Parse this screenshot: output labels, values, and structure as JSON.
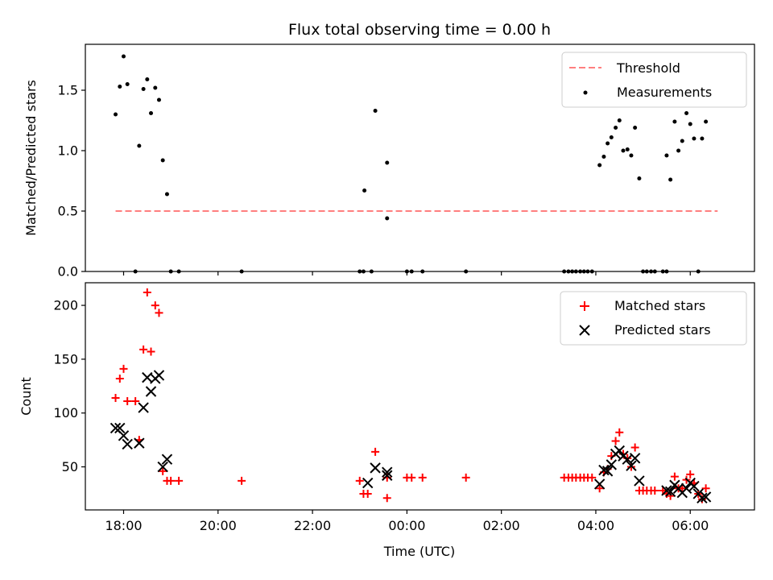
{
  "chart_data": [
    {
      "type": "scatter",
      "title": "Flux total observing time = 0.00 h",
      "xlabel": "",
      "ylabel": "Matched/Predicted stars",
      "ylim": [
        0,
        1.88
      ],
      "xlim": [
        -0.81,
        13.36
      ],
      "x_unit": "hours since 18:00 UTC",
      "yticks": [
        0.0,
        0.5,
        1.0,
        1.5
      ],
      "ytick_labels": [
        "0.0",
        "0.5",
        "1.0",
        "1.5"
      ],
      "xticks": [
        0,
        2,
        4,
        6,
        8,
        10,
        12
      ],
      "grid": false,
      "legend_position": "upper right",
      "threshold": {
        "name": "Threshold",
        "value": 0.5,
        "x_range": [
          -0.17,
          12.58
        ],
        "color": "#ff7f7f",
        "style": "dashed"
      },
      "series": [
        {
          "name": "Measurements",
          "color": "#000000",
          "marker": "dot",
          "points": [
            [
              -0.17,
              1.3
            ],
            [
              -0.08,
              1.53
            ],
            [
              0.0,
              1.78
            ],
            [
              0.08,
              1.55
            ],
            [
              0.25,
              0.0
            ],
            [
              0.33,
              1.04
            ],
            [
              0.42,
              1.51
            ],
            [
              0.5,
              1.59
            ],
            [
              0.58,
              1.31
            ],
            [
              0.67,
              1.52
            ],
            [
              0.75,
              1.42
            ],
            [
              0.83,
              0.92
            ],
            [
              0.92,
              0.64
            ],
            [
              1.0,
              0.0
            ],
            [
              1.17,
              0.0
            ],
            [
              2.5,
              0.0
            ],
            [
              5.0,
              0.0
            ],
            [
              5.08,
              0.0
            ],
            [
              5.1,
              0.67
            ],
            [
              5.25,
              0.0
            ],
            [
              5.33,
              1.33
            ],
            [
              5.58,
              0.44
            ],
            [
              5.58,
              0.9
            ],
            [
              6.0,
              0.0
            ],
            [
              6.1,
              0.0
            ],
            [
              6.33,
              0.0
            ],
            [
              7.25,
              0.0
            ],
            [
              9.33,
              0.0
            ],
            [
              9.42,
              0.0
            ],
            [
              9.5,
              0.0
            ],
            [
              9.58,
              0.0
            ],
            [
              9.67,
              0.0
            ],
            [
              9.75,
              0.0
            ],
            [
              9.83,
              0.0
            ],
            [
              9.92,
              0.0
            ],
            [
              10.08,
              0.88
            ],
            [
              10.17,
              0.95
            ],
            [
              10.25,
              1.06
            ],
            [
              10.33,
              1.11
            ],
            [
              10.42,
              1.19
            ],
            [
              10.5,
              1.25
            ],
            [
              10.58,
              1.0
            ],
            [
              10.67,
              1.01
            ],
            [
              10.75,
              0.96
            ],
            [
              10.83,
              1.19
            ],
            [
              10.92,
              0.77
            ],
            [
              11.0,
              0.0
            ],
            [
              11.08,
              0.0
            ],
            [
              11.17,
              0.0
            ],
            [
              11.25,
              0.0
            ],
            [
              11.42,
              0.0
            ],
            [
              11.5,
              0.0
            ],
            [
              11.5,
              0.96
            ],
            [
              11.58,
              0.76
            ],
            [
              11.67,
              1.24
            ],
            [
              11.75,
              1.0
            ],
            [
              11.83,
              1.08
            ],
            [
              11.92,
              1.31
            ],
            [
              12.0,
              1.22
            ],
            [
              12.08,
              1.1
            ],
            [
              12.17,
              0.0
            ],
            [
              12.25,
              1.1
            ],
            [
              12.33,
              1.24
            ]
          ]
        }
      ],
      "legend": [
        "Threshold",
        "Measurements"
      ]
    },
    {
      "type": "scatter",
      "title": "",
      "xlabel": "Time (UTC)",
      "ylabel": "Count",
      "ylim": [
        10,
        221
      ],
      "xlim": [
        -0.81,
        13.36
      ],
      "x_unit": "hours since 18:00 UTC",
      "yticks": [
        50,
        100,
        150,
        200
      ],
      "ytick_labels": [
        "50",
        "100",
        "150",
        "200"
      ],
      "xticks": [
        0,
        2,
        4,
        6,
        8,
        10,
        12
      ],
      "xtick_labels": [
        "18:00",
        "20:00",
        "22:00",
        "00:00",
        "02:00",
        "04:00",
        "06:00"
      ],
      "grid": false,
      "legend_position": "upper right",
      "series": [
        {
          "name": "Matched stars",
          "color": "#ff0000",
          "marker": "plus",
          "points": [
            [
              -0.17,
              114
            ],
            [
              -0.08,
              132
            ],
            [
              0.0,
              141
            ],
            [
              0.08,
              111
            ],
            [
              0.25,
              111
            ],
            [
              0.33,
              75
            ],
            [
              0.42,
              159
            ],
            [
              0.5,
              212
            ],
            [
              0.58,
              157
            ],
            [
              0.67,
              200
            ],
            [
              0.75,
              193
            ],
            [
              0.83,
              46
            ],
            [
              0.92,
              37
            ],
            [
              1.0,
              37
            ],
            [
              1.17,
              37
            ],
            [
              2.5,
              37
            ],
            [
              5.0,
              37
            ],
            [
              5.08,
              25
            ],
            [
              5.17,
              25
            ],
            [
              5.33,
              64
            ],
            [
              5.58,
              21
            ],
            [
              5.58,
              40
            ],
            [
              6.0,
              40
            ],
            [
              6.1,
              40
            ],
            [
              6.33,
              40
            ],
            [
              7.25,
              40
            ],
            [
              9.33,
              40
            ],
            [
              9.42,
              40
            ],
            [
              9.5,
              40
            ],
            [
              9.58,
              40
            ],
            [
              9.67,
              40
            ],
            [
              9.75,
              40
            ],
            [
              9.83,
              40
            ],
            [
              9.92,
              40
            ],
            [
              10.08,
              30
            ],
            [
              10.17,
              45
            ],
            [
              10.25,
              48
            ],
            [
              10.33,
              60
            ],
            [
              10.42,
              74
            ],
            [
              10.5,
              82
            ],
            [
              10.58,
              62
            ],
            [
              10.67,
              58
            ],
            [
              10.75,
              50
            ],
            [
              10.83,
              68
            ],
            [
              10.92,
              28
            ],
            [
              11.0,
              28
            ],
            [
              11.08,
              28
            ],
            [
              11.17,
              28
            ],
            [
              11.25,
              28
            ],
            [
              11.42,
              28
            ],
            [
              11.5,
              25
            ],
            [
              11.58,
              23
            ],
            [
              11.67,
              41
            ],
            [
              11.75,
              30
            ],
            [
              11.83,
              30
            ],
            [
              11.92,
              38
            ],
            [
              12.0,
              43
            ],
            [
              12.08,
              35
            ],
            [
              12.17,
              25
            ],
            [
              12.25,
              20
            ],
            [
              12.33,
              30
            ]
          ]
        },
        {
          "name": "Predicted stars",
          "color": "#000000",
          "marker": "x",
          "points": [
            [
              -0.17,
              86
            ],
            [
              -0.08,
              86
            ],
            [
              0.0,
              79
            ],
            [
              0.08,
              71
            ],
            [
              0.33,
              72
            ],
            [
              0.42,
              105
            ],
            [
              0.5,
              133
            ],
            [
              0.58,
              120
            ],
            [
              0.67,
              132
            ],
            [
              0.75,
              135
            ],
            [
              0.83,
              50
            ],
            [
              0.92,
              57
            ],
            [
              5.17,
              35
            ],
            [
              5.33,
              49
            ],
            [
              5.58,
              45
            ],
            [
              5.58,
              42
            ],
            [
              10.08,
              34
            ],
            [
              10.17,
              47
            ],
            [
              10.25,
              46
            ],
            [
              10.33,
              52
            ],
            [
              10.42,
              62
            ],
            [
              10.5,
              65
            ],
            [
              10.58,
              60
            ],
            [
              10.67,
              57
            ],
            [
              10.75,
              51
            ],
            [
              10.83,
              58
            ],
            [
              10.92,
              37
            ],
            [
              11.5,
              28
            ],
            [
              11.58,
              27
            ],
            [
              11.67,
              33
            ],
            [
              11.75,
              30
            ],
            [
              11.83,
              26
            ],
            [
              11.92,
              30
            ],
            [
              12.0,
              35
            ],
            [
              12.08,
              32
            ],
            [
              12.17,
              25
            ],
            [
              12.25,
              21
            ],
            [
              12.33,
              22
            ]
          ]
        }
      ],
      "legend": [
        "Matched stars",
        "Predicted stars"
      ]
    }
  ]
}
